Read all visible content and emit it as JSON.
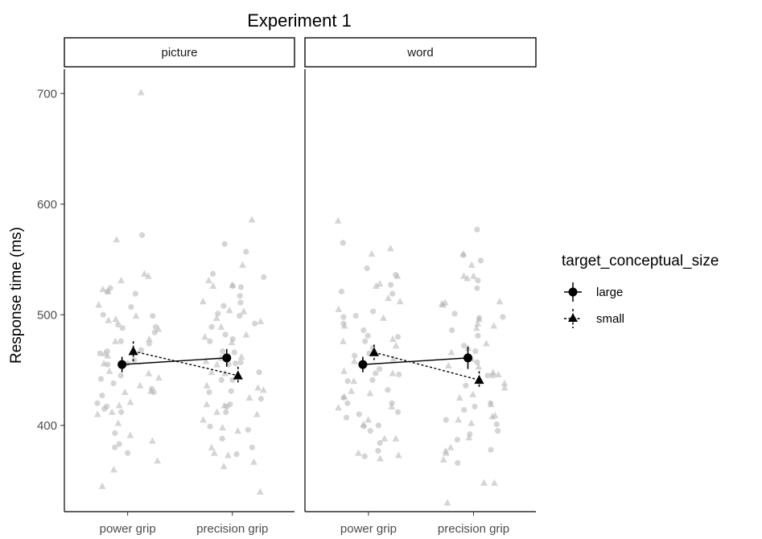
{
  "chart_data": {
    "type": "scatter",
    "title": "Experiment 1",
    "ylabel": "Response time (ms)",
    "xlabel": "",
    "ylim": [
      322,
      722
    ],
    "yticks": [
      400,
      500,
      600,
      700
    ],
    "categories": [
      "power grip",
      "precision grip"
    ],
    "legend": {
      "title": "target_conceptual_size",
      "placement": "right",
      "entries": [
        "large",
        "small"
      ]
    },
    "colors": {
      "raw_points": "#b3b3b3",
      "summary": "#000000",
      "strip_fill": "#ffffff"
    },
    "facets": [
      {
        "label": "picture",
        "summary": [
          {
            "name": "large",
            "marker": "circle",
            "linestyle": "solid",
            "means": [
              455,
              461
            ],
            "errors": [
              7,
              8
            ]
          },
          {
            "name": "small",
            "marker": "triangle",
            "linestyle": "dashed",
            "means": [
              467,
              445
            ],
            "errors": [
              9,
              8
            ]
          }
        ],
        "raw": {
          "power grip": {
            "large": [
              499,
              484,
              465,
              445,
              430,
              415,
              383,
              375,
              519,
              524,
              500,
              489,
              476,
              467,
              456,
              438,
              427,
              572,
              393,
              380,
              420,
              433,
              455,
              474,
              488,
              521,
              507,
              491,
              468,
              459,
              442,
              417,
              412
            ],
            "small": [
              568,
              523,
              535,
              537,
              496,
              478,
              463,
              443,
              430,
              410,
              391,
              345,
              701,
              531,
              521,
              499,
              487,
              465,
              449,
              436,
              418,
              386,
              368,
              360,
              509,
              495,
              476,
              456,
              447,
              431,
              421,
              412,
              402
            ]
          },
          "precision grip": {
            "large": [
              508,
              492,
              478,
              467,
              448,
              431,
              424,
              412,
              388,
              374,
              557,
              526,
              511,
              501,
              482,
              456,
              441,
              417,
              396,
              380,
              534,
              525,
              499,
              466,
              457,
              441,
              419,
              399,
              564,
              537,
              517,
              489,
              476,
              455,
              430
            ],
            "small": [
              586,
              512,
              497,
              482,
              461,
              448,
              425,
              410,
              380,
              363,
              531,
              503,
              494,
              475,
              458,
              434,
              418,
              367,
              545,
              526,
              489,
              462,
              447,
              432,
              412,
              398,
              375,
              340,
              527,
              504,
              480,
              455,
              436,
              419,
              405,
              395,
              373
            ]
          }
        }
      },
      {
        "label": "word",
        "summary": [
          {
            "name": "large",
            "marker": "circle",
            "linestyle": "solid",
            "means": [
              455,
              461
            ],
            "errors": [
              7,
              10
            ]
          },
          {
            "name": "small",
            "marker": "triangle",
            "linestyle": "dashed",
            "means": [
              466,
              441
            ],
            "errors": [
              7,
              8
            ]
          }
        ],
        "raw": {
          "power grip": {
            "large": [
              492,
              486,
              463,
              441,
              420,
              399,
              384,
              372,
              527,
              519,
              503,
              480,
              470,
              451,
              440,
              420,
              407,
              536,
              498,
              476,
              447,
              432,
              412,
              400,
              377,
              565,
              542,
              521,
              499,
              481,
              465,
              446,
              425,
              410,
              395
            ],
            "small": [
              555,
              526,
              505,
              472,
              440,
              426,
              405,
              388,
              370,
              528,
              512,
              490,
              478,
              460,
              447,
              429,
              416,
              375,
              585,
              560,
              535,
              515,
              497,
              476,
              458,
              449,
              431,
              417,
              401,
              388,
              373
            ]
          },
          "precision grip": {
            "large": [
              497,
              472,
              445,
              417,
              395,
              378,
              366,
              554,
              531,
              501,
              486,
              467,
              445,
              420,
              405,
              392,
              577,
              549,
              524,
              498,
              481,
              457,
              436,
              414,
              401,
              387
            ],
            "small": [
              509,
              488,
              460,
              446,
              425,
              402,
              375,
              348,
              533,
              510,
              496,
              474,
              454,
              438,
              419,
              408,
              389,
              369,
              545,
              535,
              512,
              492,
              466,
              448,
              428,
              405,
              380,
              348,
              330,
              555,
              535,
              511,
              490,
              470,
              453,
              434,
              409,
              377
            ]
          }
        }
      }
    ]
  }
}
